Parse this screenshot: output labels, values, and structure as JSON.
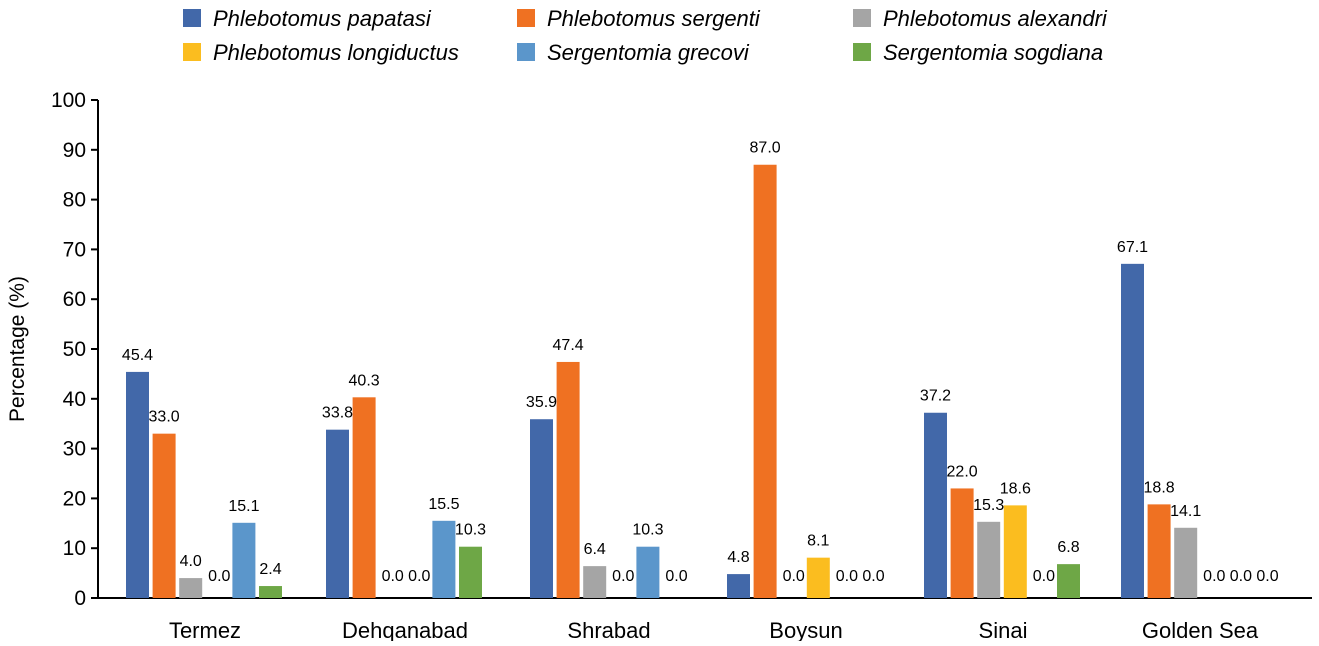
{
  "chart_data": {
    "type": "bar",
    "title": "",
    "xlabel": "",
    "ylabel": "Percentage (%)",
    "ylim": [
      0,
      100
    ],
    "yticks": [
      0,
      10,
      20,
      30,
      40,
      50,
      60,
      70,
      80,
      90,
      100
    ],
    "grid": false,
    "legend_position": "top",
    "categories": [
      "Termez",
      "Dehqanabad",
      "Shrabad",
      "Boysun",
      "Sinai",
      "Golden Sea"
    ],
    "series": [
      {
        "name": "Phlebotomus papatasi",
        "color": "#4268A9",
        "values": [
          45.4,
          33.8,
          35.9,
          4.8,
          37.2,
          67.1
        ]
      },
      {
        "name": "Phlebotomus sergenti",
        "color": "#EF7122",
        "values": [
          33.0,
          40.3,
          47.4,
          87.0,
          22.0,
          18.8
        ]
      },
      {
        "name": "Phlebotomus alexandri",
        "color": "#A5A5A5",
        "values": [
          4.0,
          0.0,
          6.4,
          0.0,
          15.3,
          14.1
        ]
      },
      {
        "name": "Phlebotomus longiductus",
        "color": "#FBBD1F",
        "values": [
          0.0,
          0.0,
          0.0,
          8.1,
          18.6,
          0.0
        ]
      },
      {
        "name": "Sergentomia grecovi",
        "color": "#5B96CB",
        "values": [
          15.1,
          15.5,
          10.3,
          0.0,
          0.0,
          0.0
        ]
      },
      {
        "name": "Sergentomia sogdiana",
        "color": "#6EA746",
        "values": [
          2.4,
          10.3,
          0.0,
          0.0,
          6.8,
          0.0
        ]
      }
    ]
  }
}
